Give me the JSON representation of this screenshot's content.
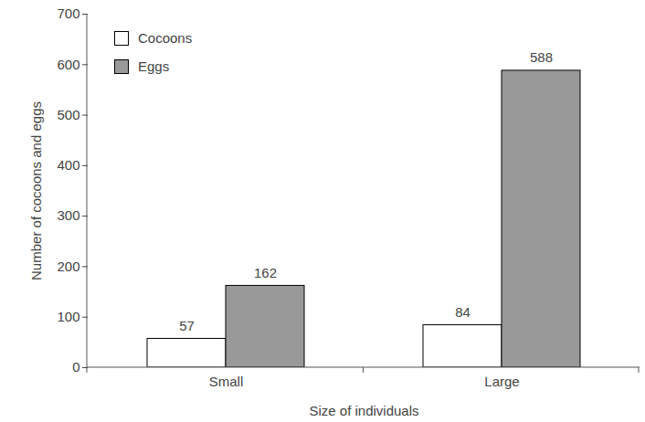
{
  "chart_data": {
    "type": "bar",
    "categories": [
      "Small",
      "Large"
    ],
    "series": [
      {
        "name": "Cocoons",
        "color": "#ffffff",
        "values": [
          57,
          84
        ]
      },
      {
        "name": "Eggs",
        "color": "#999999",
        "values": [
          162,
          588
        ]
      }
    ],
    "x_label": "Size of individuals",
    "y_label": "Number of cocoons and eggs",
    "ylim": [
      0,
      700
    ],
    "yticks": [
      0,
      100,
      200,
      300,
      400,
      500,
      600,
      700
    ],
    "grid": false,
    "legend": "upper left",
    "data_labels": true
  }
}
